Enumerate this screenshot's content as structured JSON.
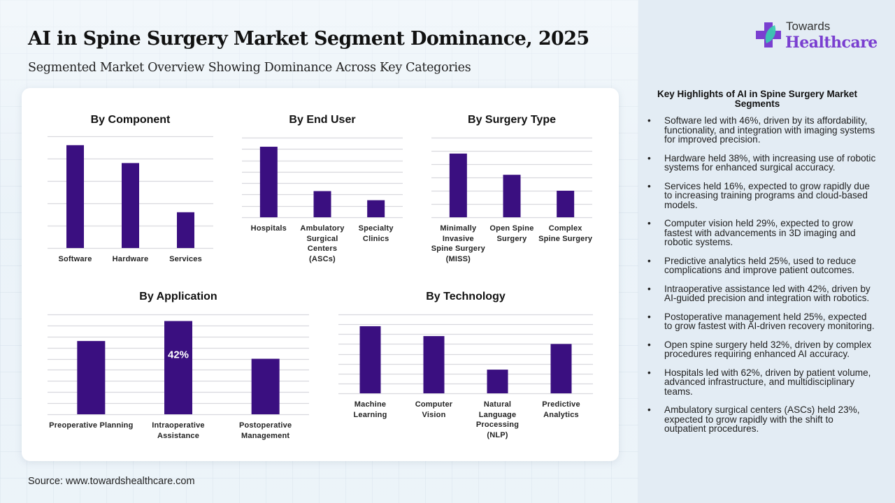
{
  "header": {
    "title": "AI in Spine Surgery Market Segment Dominance, 2025",
    "subtitle": "Segmented Market Overview Showing Dominance Across Key Categories"
  },
  "logo": {
    "line1": "Towards",
    "line2": "Healthcare",
    "icon": "medical-cross-leaf-icon",
    "colors": {
      "cross": "#7a3fd0",
      "leaf": "#3cc9b0"
    }
  },
  "colors": {
    "bar": "#3a0f80",
    "grid": "#d9d9de",
    "label_on_bar": "#ffffff"
  },
  "chart_data": [
    {
      "type": "bar",
      "title": "By Component",
      "categories": [
        "Software",
        "Hardware",
        "Services"
      ],
      "values": [
        46,
        38,
        16
      ],
      "ylim": [
        0,
        50
      ],
      "gridlines": 5,
      "xlabel": "",
      "ylabel": "",
      "data_labels": []
    },
    {
      "type": "bar",
      "title": "By End User",
      "categories": [
        "Hospitals",
        "Ambulatory\nSurgical\nCenters\n(ASCs)",
        "Specialty\nClinics"
      ],
      "values": [
        62,
        23,
        15
      ],
      "ylim": [
        0,
        70
      ],
      "gridlines": 7,
      "xlabel": "",
      "ylabel": "",
      "data_labels": []
    },
    {
      "type": "bar",
      "title": "By Surgery Type",
      "categories": [
        "Minimally\nInvasive\nSpine Surgery\n(MISS)",
        "Open Spine\nSurgery",
        "Complex\nSpine Surgery"
      ],
      "values": [
        48,
        32,
        20
      ],
      "ylim": [
        0,
        60
      ],
      "gridlines": 6,
      "xlabel": "",
      "ylabel": "",
      "data_labels": []
    },
    {
      "type": "bar",
      "title": "By Application",
      "categories": [
        "Preoperative Planning",
        "Intraoperative\nAssistance",
        "Postoperative\nManagement"
      ],
      "values": [
        33,
        42,
        25
      ],
      "ylim": [
        0,
        45
      ],
      "gridlines": 9,
      "xlabel": "",
      "ylabel": "",
      "data_labels": [
        "",
        "42%",
        ""
      ]
    },
    {
      "type": "bar",
      "title": "By Technology",
      "categories": [
        "Machine\nLearning",
        "Computer\nVision",
        "Natural\nLanguage\nProcessing\n(NLP)",
        "Predictive\nAnalytics"
      ],
      "values": [
        34,
        29,
        12,
        25
      ],
      "ylim": [
        0,
        40
      ],
      "gridlines": 8,
      "xlabel": "",
      "ylabel": "",
      "data_labels": []
    }
  ],
  "highlights": {
    "title": "Key Highlights of AI in Spine Surgery Market Segments",
    "items": [
      "Software led with 46%, driven by its affordability, functionality, and integration with imaging systems for improved precision.",
      "Hardware held 38%, with increasing use of robotic systems for enhanced surgical accuracy.",
      "Services held 16%, expected to grow rapidly due to increasing training programs and cloud-based models.",
      "Computer vision held 29%, expected to grow fastest with advancements in 3D imaging and robotic systems.",
      "Predictive analytics held 25%, used to reduce complications and improve patient outcomes.",
      "Intraoperative assistance led with 42%, driven by AI-guided precision and integration with robotics.",
      "Postoperative management held 25%, expected to grow fastest with AI-driven recovery monitoring.",
      "Open spine surgery held 32%, driven by complex procedures requiring enhanced AI accuracy.",
      "Hospitals led with 62%, driven by patient volume, advanced infrastructure, and multidisciplinary teams.",
      "Ambulatory surgical centers (ASCs) held 23%, expected to grow rapidly with the shift to outpatient procedures."
    ],
    "bullet": "•"
  },
  "footer": {
    "source": "Source: www.towardshealthcare.com"
  }
}
